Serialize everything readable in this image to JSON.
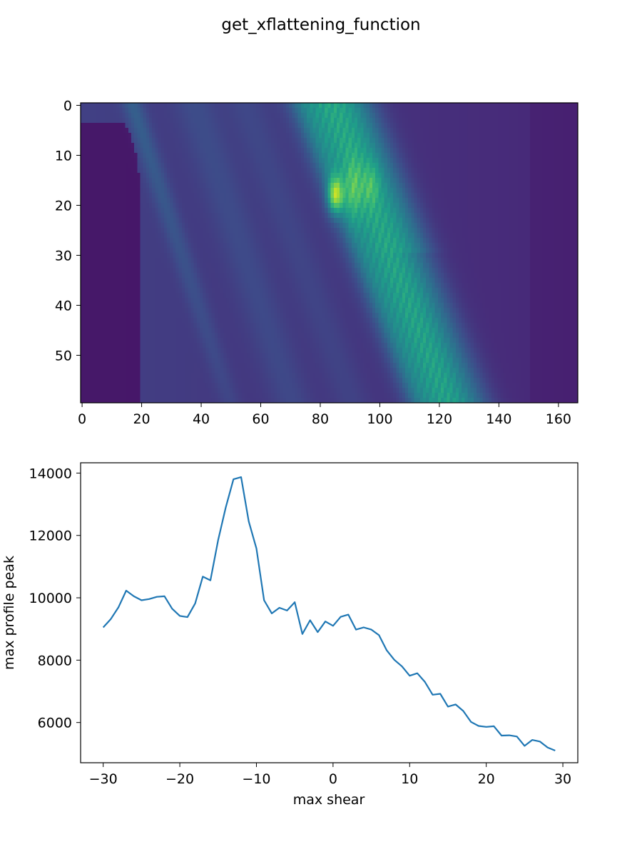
{
  "suptitle": "get_xflattening_function",
  "chart_data": [
    {
      "type": "heatmap",
      "colormap": "viridis",
      "rows": 60,
      "cols": 167,
      "xlim": [
        -0.5,
        166.5
      ],
      "ylim": [
        59.5,
        -0.5
      ],
      "xticks": [
        0,
        20,
        40,
        60,
        80,
        100,
        120,
        140,
        160
      ],
      "xtick_labels": [
        "0",
        "20",
        "40",
        "60",
        "80",
        "100",
        "120",
        "140",
        "160"
      ],
      "yticks": [
        0,
        10,
        20,
        30,
        40,
        50
      ],
      "ytick_labels": [
        "0",
        "10",
        "20",
        "30",
        "40",
        "50"
      ],
      "features": [
        {
          "desc": "bright band",
          "x_at_row0": 83,
          "x_at_row59": 122,
          "width": 13,
          "intensity": 0.55
        },
        {
          "desc": "peak",
          "x": 85,
          "y": 18,
          "intensity": 1.0
        },
        {
          "desc": "faint streak",
          "x_at_row0": 17,
          "x_at_row59": 50,
          "intensity": 0.2
        },
        {
          "desc": "dark region",
          "x_range": [
            0,
            20
          ],
          "y_range": [
            10,
            59
          ]
        }
      ]
    },
    {
      "type": "line",
      "xlabel": "max shear",
      "ylabel": "max profile peak",
      "xlim": [
        -32.95,
        31.95
      ],
      "ylim": [
        4710,
        14330
      ],
      "xticks": [
        -30,
        -20,
        -10,
        0,
        10,
        20,
        30
      ],
      "xtick_labels": [
        "−30",
        "−20",
        "−10",
        "0",
        "10",
        "20",
        "30"
      ],
      "yticks": [
        6000,
        8000,
        10000,
        12000,
        14000
      ],
      "ytick_labels": [
        "6000",
        "8000",
        "10000",
        "12000",
        "14000"
      ],
      "color": "#1f77b4",
      "x": [
        -30,
        -29,
        -28,
        -27,
        -26,
        -25,
        -24,
        -23,
        -22,
        -21,
        -20,
        -19,
        -18,
        -17,
        -16,
        -15,
        -14,
        -13,
        -12,
        -11,
        -10,
        -9,
        -8,
        -7,
        -6,
        -5,
        -4,
        -3,
        -2,
        -1,
        0,
        1,
        2,
        3,
        4,
        5,
        6,
        7,
        8,
        9,
        10,
        11,
        12,
        13,
        14,
        15,
        16,
        17,
        18,
        19,
        20,
        21,
        22,
        23,
        24,
        25,
        26,
        27,
        28,
        29
      ],
      "y": [
        9050,
        9320,
        9700,
        10230,
        10050,
        9920,
        9960,
        10030,
        10050,
        9650,
        9420,
        9380,
        9820,
        10680,
        10560,
        11850,
        12900,
        13800,
        13870,
        12450,
        11580,
        9920,
        9500,
        9680,
        9590,
        9860,
        8840,
        9280,
        8900,
        9240,
        9100,
        9390,
        9460,
        8980,
        9050,
        8980,
        8800,
        8320,
        8010,
        7800,
        7500,
        7580,
        7300,
        6890,
        6920,
        6510,
        6580,
        6370,
        6020,
        5890,
        5860,
        5880,
        5580,
        5590,
        5550,
        5250,
        5440,
        5390,
        5200,
        5100
      ]
    }
  ]
}
